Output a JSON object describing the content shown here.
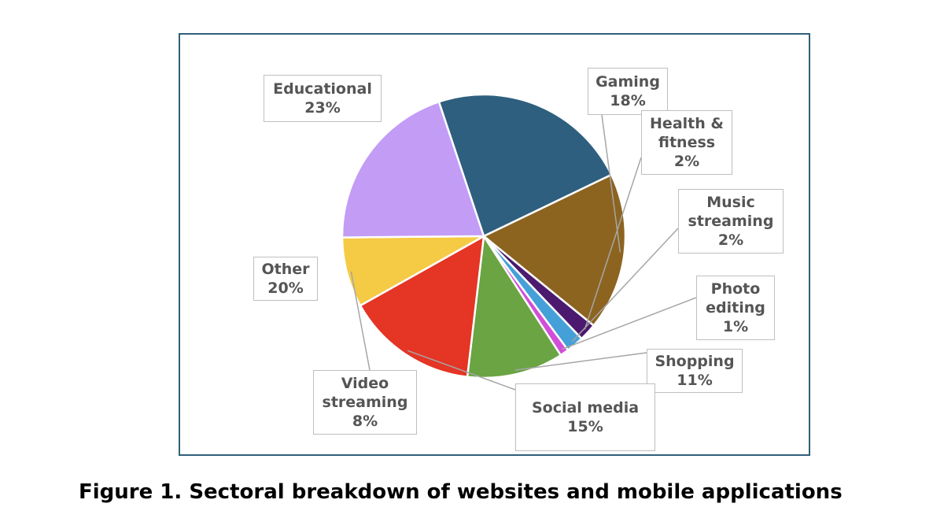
{
  "chart_data": {
    "type": "pie",
    "slices": [
      {
        "name": "Educational",
        "line1": "Educational",
        "line2": "",
        "pct_label": "23%",
        "value": 23,
        "color": "#2e5f7f"
      },
      {
        "name": "Gaming",
        "line1": "Gaming",
        "line2": "",
        "pct_label": "18%",
        "value": 18,
        "color": "#8c6420"
      },
      {
        "name": "Health & fitness",
        "line1": "Health &",
        "line2": "fitness",
        "pct_label": "2%",
        "value": 2,
        "color": "#4b1a6e"
      },
      {
        "name": "Music streaming",
        "line1": "Music",
        "line2": "streaming",
        "pct_label": "2%",
        "value": 2,
        "color": "#45a0d8"
      },
      {
        "name": "Photo editing",
        "line1": "Photo",
        "line2": "editing",
        "pct_label": "1%",
        "value": 1,
        "color": "#d24ed8"
      },
      {
        "name": "Shopping",
        "line1": "Shopping",
        "line2": "",
        "pct_label": "11%",
        "value": 11,
        "color": "#6aa443"
      },
      {
        "name": "Social media",
        "line1": "Social media",
        "line2": "",
        "pct_label": "15%",
        "value": 15,
        "color": "#e43525"
      },
      {
        "name": "Video streaming",
        "line1": "Video",
        "line2": "streaming",
        "pct_label": "8%",
        "value": 8,
        "color": "#f5ca45"
      },
      {
        "name": "Other",
        "line1": "Other",
        "line2": "",
        "pct_label": "20%",
        "value": 20,
        "color": "#c39cf6"
      }
    ]
  },
  "caption": "Figure 1. Sectoral breakdown of websites and mobile applications"
}
